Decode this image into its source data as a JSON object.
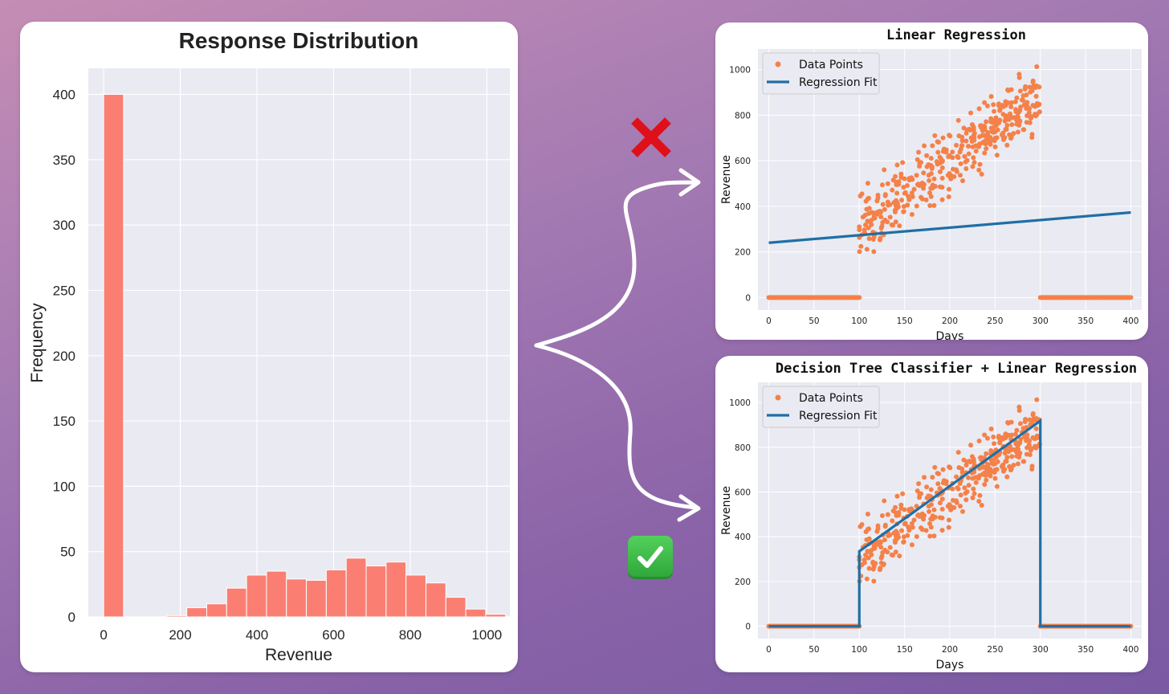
{
  "colors": {
    "bar": "#fa7f72",
    "scatter": "#f48149",
    "fit": "#1f6fa5",
    "plot_bg": "#eaeaf2",
    "grid": "#ffffff"
  },
  "icons": {
    "wrong": "red-cross-icon",
    "right": "green-check-icon"
  },
  "chart_data": [
    {
      "type": "bar",
      "title": "Response Distribution",
      "xlabel": "Revenue",
      "ylabel": "Frequency",
      "xlim": [
        -40,
        1060
      ],
      "ylim": [
        0,
        420
      ],
      "xticks": [
        0,
        200,
        400,
        600,
        800,
        1000
      ],
      "yticks": [
        0,
        50,
        100,
        150,
        200,
        250,
        300,
        350,
        400
      ],
      "grid": true,
      "bins": [
        {
          "x": 0,
          "value": 400
        },
        {
          "x": 165,
          "value": 1
        },
        {
          "x": 217,
          "value": 7
        },
        {
          "x": 269,
          "value": 10
        },
        {
          "x": 321,
          "value": 22
        },
        {
          "x": 373,
          "value": 32
        },
        {
          "x": 425,
          "value": 35
        },
        {
          "x": 477,
          "value": 29
        },
        {
          "x": 529,
          "value": 28
        },
        {
          "x": 581,
          "value": 36
        },
        {
          "x": 633,
          "value": 45
        },
        {
          "x": 685,
          "value": 39
        },
        {
          "x": 737,
          "value": 42
        },
        {
          "x": 789,
          "value": 32
        },
        {
          "x": 841,
          "value": 26
        },
        {
          "x": 893,
          "value": 15
        },
        {
          "x": 945,
          "value": 6
        },
        {
          "x": 997,
          "value": 2
        }
      ],
      "bin_width": 52
    },
    {
      "type": "scatter",
      "title": "Linear Regression",
      "xlabel": "Days",
      "ylabel": "Revenue",
      "xlim": [
        -12,
        412
      ],
      "ylim": [
        -55,
        1090
      ],
      "xticks": [
        0,
        50,
        100,
        150,
        200,
        250,
        300,
        350,
        400
      ],
      "yticks": [
        0,
        200,
        400,
        600,
        800,
        1000
      ],
      "grid": true,
      "legend": {
        "position": "top-left",
        "entries": [
          "Data Points",
          "Regression Fit"
        ]
      },
      "series": [
        {
          "name": "Data Points",
          "kind": "scatter",
          "zero_ranges": [
            [
              0,
              100
            ],
            [
              300,
              400
            ]
          ],
          "trend_range": [
            100,
            300
          ],
          "trend_y": [
            320,
            880
          ],
          "noise": 105
        },
        {
          "name": "Regression Fit",
          "kind": "line",
          "x": [
            0,
            400
          ],
          "y": [
            240,
            373
          ]
        }
      ]
    },
    {
      "type": "scatter",
      "title": "Decision Tree Classifier + Linear Regression",
      "xlabel": "Days",
      "ylabel": "Revenue",
      "xlim": [
        -12,
        412
      ],
      "ylim": [
        -55,
        1090
      ],
      "xticks": [
        0,
        50,
        100,
        150,
        200,
        250,
        300,
        350,
        400
      ],
      "yticks": [
        0,
        200,
        400,
        600,
        800,
        1000
      ],
      "grid": true,
      "legend": {
        "position": "top-left",
        "entries": [
          "Data Points",
          "Regression Fit"
        ]
      },
      "series": [
        {
          "name": "Data Points",
          "kind": "scatter",
          "zero_ranges": [
            [
              0,
              100
            ],
            [
              300,
              400
            ]
          ],
          "trend_range": [
            100,
            300
          ],
          "trend_y": [
            320,
            880
          ],
          "noise": 105
        },
        {
          "name": "Regression Fit",
          "kind": "line",
          "x": [
            0,
            100,
            100,
            300,
            300,
            400
          ],
          "y": [
            0,
            0,
            335,
            918,
            0,
            0
          ]
        }
      ]
    }
  ]
}
